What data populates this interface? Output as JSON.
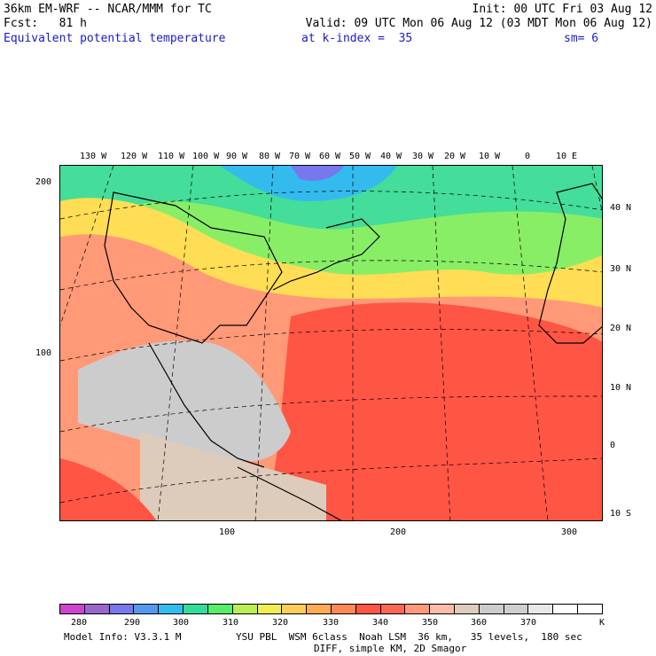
{
  "header": {
    "line1_left": "36km EM-WRF -- NCAR/MMM for TC",
    "line1_right": "Init: 00 UTC Fri 03 Aug 12",
    "line2_left": "Fcst:   81 h",
    "line2_right": "Valid: 09 UTC Mon 06 Aug 12 (03 MDT Mon 06 Aug 12)",
    "field": "Equivalent potential temperature",
    "level": "at k-index =  35",
    "smooth": "sm= 6"
  },
  "map": {
    "top_lon_labels": [
      "130 W",
      "120 W",
      "110 W",
      "100 W",
      "90 W",
      "80 W",
      "70 W",
      "60 W",
      "50 W",
      "40 W",
      "30 W",
      "20 W",
      "10 W",
      "0",
      "10 E"
    ],
    "right_lat_labels": [
      "40 N",
      "30 N",
      "20 N",
      "10 N",
      "0",
      "10 S"
    ],
    "left_grid_labels": [
      "200",
      "100"
    ],
    "bottom_grid_labels": [
      "100",
      "200",
      "300"
    ]
  },
  "colorbar": {
    "colors": [
      "#cc44cc",
      "#9966cc",
      "#7777ee",
      "#5599ee",
      "#33bbee",
      "#33dd99",
      "#55ee66",
      "#bbee55",
      "#eeee55",
      "#ffcc55",
      "#ffaa55",
      "#ff8855",
      "#ff5544",
      "#ff6655",
      "#ff9977",
      "#ffbbaa",
      "#ddccbb",
      "#cccccc",
      "#cfcfcf",
      "#e8e8e8",
      "#ffffff",
      "#ffffff"
    ],
    "labels": [
      "280",
      "290",
      "300",
      "310",
      "320",
      "330",
      "340",
      "350",
      "360",
      "370"
    ],
    "unit": "K"
  },
  "footer": {
    "line1_left": "Model Info: V3.3.1 M",
    "line1_right": "YSU PBL  WSM 6class  Noah LSM  36 km,   35 levels,  180 sec",
    "line2": "DIFF, simple KM, 2D Smagor"
  }
}
